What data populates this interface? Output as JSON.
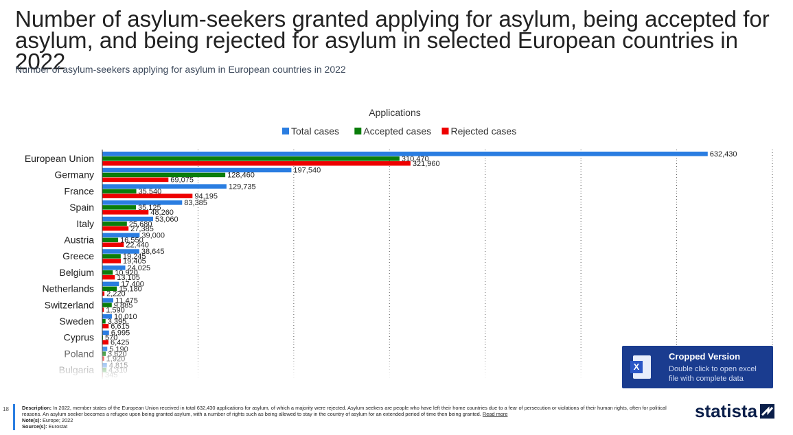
{
  "title": "Number of asylum-seekers granted applying for asylum, being accepted for asylum, and being rejected for asylum in selected European countries in 2022",
  "subtitle": "Number of asylum-seekers applying for asylum in European countries in 2022",
  "chart_data": {
    "type": "bar",
    "orientation": "horizontal",
    "title": "Applications",
    "categories": [
      "European Union",
      "Germany",
      "France",
      "Spain",
      "Italy",
      "Austria",
      "Greece",
      "Belgium",
      "Netherlands",
      "Switzerland",
      "Sweden",
      "Cyprus",
      "Poland",
      "Bulgaria"
    ],
    "series": [
      {
        "name": "Total cases",
        "color": "#2a7de1",
        "values": [
          632430,
          197540,
          129735,
          83385,
          53060,
          39000,
          38645,
          24025,
          17400,
          11475,
          10010,
          6995,
          5190,
          4815
        ]
      },
      {
        "name": "Accepted cases",
        "color": "#0a7d0a",
        "values": [
          310470,
          128460,
          35540,
          35125,
          25680,
          16550,
          19245,
          10920,
          15180,
          9885,
          3395,
          570,
          3620,
          4310
        ]
      },
      {
        "name": "Rejected cases",
        "color": "#ee0000",
        "values": [
          321960,
          69075,
          94195,
          48260,
          27385,
          22440,
          19405,
          13105,
          2220,
          1590,
          6615,
          6425,
          1920,
          345
        ]
      }
    ],
    "value_labels": [
      [
        "632,430",
        "310,470",
        "321,960"
      ],
      [
        "197,540",
        "128,460",
        "69,075"
      ],
      [
        "129,735",
        "35,540",
        "94,195"
      ],
      [
        "83,385",
        "35,125",
        "48,260"
      ],
      [
        "53,060",
        "25,680",
        "27,385"
      ],
      [
        "39,000",
        "16,550",
        "22,440"
      ],
      [
        "38,645",
        "19,245",
        "19,405"
      ],
      [
        "24,025",
        "10,920",
        "13,105"
      ],
      [
        "17,400",
        "15,180",
        "2,220"
      ],
      [
        "11,475",
        "9,885",
        "1,590"
      ],
      [
        "10,010",
        "3,395",
        "6,615"
      ],
      [
        "6,995",
        "570",
        "6,425"
      ],
      [
        "5,190",
        "3,620",
        "1,920"
      ],
      [
        "4,815",
        "4,310",
        "345"
      ]
    ],
    "xlim": [
      0,
      700000
    ],
    "grid": true,
    "legend_position": "top"
  },
  "excel": {
    "title": "Cropped Version",
    "line1": "Double click to open excel",
    "line2": "file with complete data"
  },
  "footer": {
    "page_number": "18",
    "description_label": "Description:",
    "description_text": "In 2022, member states of the European Union received in total 632,430 applications for asylum, of which a majority were rejected. Asylum seekers are people who have left their home countries due to a fear of persecution or violations of their human rights, often for political reasons. An asylum seeker becomes a refugee upon being granted asylum, with a number of rights such as being allowed to stay in the country of asylum for an extended period of time then being granted.",
    "read_more": "Read more",
    "note_label": "Note(s):",
    "note_text": "Europe; 2022",
    "source_label": "Source(s):",
    "source_text": "Eurostat"
  },
  "brand": "statista"
}
